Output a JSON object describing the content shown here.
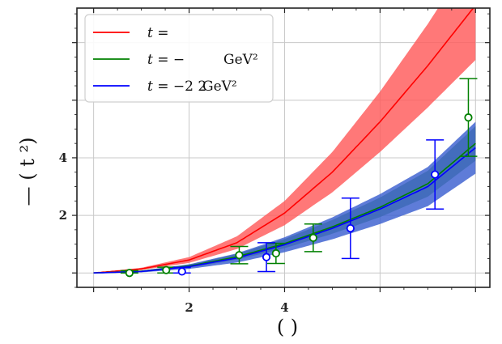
{
  "chart_data": {
    "type": "line",
    "x_tick_labels": [
      {
        "value": 2,
        "label": "2"
      },
      {
        "value": 4,
        "label": "4"
      }
    ],
    "y_tick_labels": [
      {
        "value": 2,
        "label": "2"
      },
      {
        "value": 4,
        "label": "4"
      }
    ],
    "x_ticks": [
      0,
      2,
      4,
      6,
      8
    ],
    "y_ticks": [
      0,
      2,
      4,
      6,
      8
    ],
    "xlim": [
      -0.35,
      8.3
    ],
    "ylim": [
      -0.5,
      9.2
    ],
    "xlabel": "(  )",
    "ylabel": "—  (  t  ²)",
    "grid": true,
    "legend_position": "top-left",
    "legend": [
      {
        "var": "t",
        "text": " =",
        "unit": ""
      },
      {
        "var": "t",
        "text": " = −",
        "unit": "GeV²"
      },
      {
        "var": "t",
        "text": " = −2 2 ",
        "unit": "GeV²"
      }
    ],
    "series": [
      {
        "color": "#ff0000",
        "band_color": "#ff5a5a",
        "curve": {
          "x": [
            0,
            1,
            2,
            3,
            4,
            5,
            6,
            7,
            8
          ],
          "y": [
            0.0,
            0.14,
            0.45,
            1.05,
            2.08,
            3.5,
            5.25,
            7.2,
            9.3
          ]
        },
        "band_width": {
          "x": [
            0,
            1,
            2,
            3,
            4,
            5,
            6,
            7,
            8
          ],
          "y": [
            0.0,
            0.04,
            0.1,
            0.22,
            0.42,
            0.7,
            1.05,
            1.45,
            1.9
          ]
        }
      },
      {
        "color": "#008000",
        "band_color": "#4a9a4a",
        "curve": {
          "x": [
            0,
            1,
            2,
            3,
            4,
            5,
            6,
            7,
            8
          ],
          "y": [
            0.0,
            0.06,
            0.24,
            0.56,
            1.02,
            1.6,
            2.28,
            3.1,
            4.5
          ]
        },
        "band_width": {
          "x": [
            0,
            1,
            2,
            3,
            4,
            5,
            6,
            7,
            8
          ],
          "y": [
            0.0,
            0.02,
            0.05,
            0.1,
            0.16,
            0.24,
            0.34,
            0.45,
            0.6
          ]
        },
        "points": [
          {
            "x": 0.75,
            "y": 0.0,
            "err": 0.08
          },
          {
            "x": 1.52,
            "y": 0.1,
            "err": 0.1
          },
          {
            "x": 3.05,
            "y": 0.62,
            "err": 0.3
          },
          {
            "x": 3.82,
            "y": 0.68,
            "err": 0.35
          },
          {
            "x": 4.6,
            "y": 1.22,
            "err": 0.48
          },
          {
            "x": 7.85,
            "y": 5.4,
            "err": 1.35
          }
        ]
      },
      {
        "color": "#0000ff",
        "band_color": "#3a5fcf",
        "curve": {
          "x": [
            0,
            1,
            2,
            3,
            4,
            5,
            6,
            7,
            8
          ],
          "y": [
            0.0,
            0.05,
            0.22,
            0.52,
            0.98,
            1.55,
            2.22,
            3.0,
            4.35
          ]
        },
        "band_width": {
          "x": [
            0,
            1,
            2,
            3,
            4,
            5,
            6,
            7,
            8
          ],
          "y": [
            0.0,
            0.03,
            0.08,
            0.16,
            0.26,
            0.38,
            0.52,
            0.68,
            0.9
          ]
        },
        "points": [
          {
            "x": 1.85,
            "y": 0.05,
            "err": 0.14
          },
          {
            "x": 3.62,
            "y": 0.55,
            "err": 0.5
          },
          {
            "x": 5.38,
            "y": 1.55,
            "err": 1.05
          },
          {
            "x": 7.15,
            "y": 3.42,
            "err": 1.2
          }
        ]
      }
    ]
  }
}
